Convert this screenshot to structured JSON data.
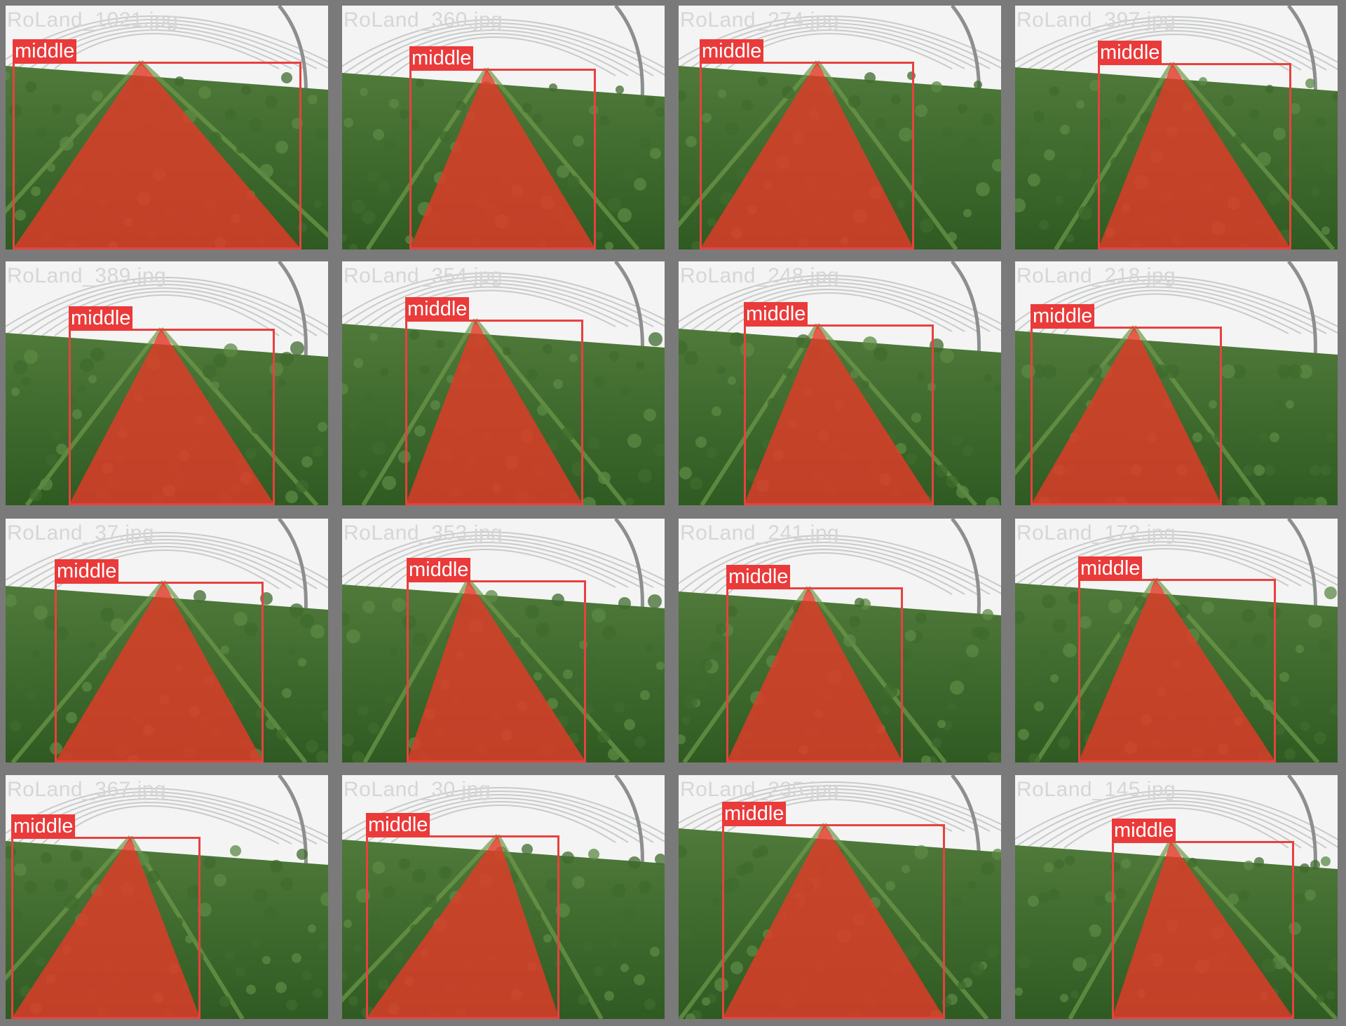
{
  "theme": {
    "mask_color": "#e23a28",
    "box_color": "#e8413f",
    "label_bg": "#ea3a3a",
    "label_text": "#ffffff"
  },
  "tiles": [
    {
      "file": "RoLand_1021.jpg",
      "label": "middle"
    },
    {
      "file": "RoLand_360.jpg",
      "label": "middle"
    },
    {
      "file": "RoLand_274.jpg",
      "label": "middle"
    },
    {
      "file": "RoLand_397.jpg",
      "label": "middle"
    },
    {
      "file": "RoLand_389.jpg",
      "label": "middle"
    },
    {
      "file": "RoLand_354.jpg",
      "label": "middle"
    },
    {
      "file": "RoLand_248.jpg",
      "label": "middle"
    },
    {
      "file": "RoLand_218.jpg",
      "label": "middle"
    },
    {
      "file": "RoLand_37.jpg",
      "label": "middle"
    },
    {
      "file": "RoLand_353.jpg",
      "label": "middle"
    },
    {
      "file": "RoLand_241.jpg",
      "label": "middle"
    },
    {
      "file": "RoLand_172.jpg",
      "label": "middle"
    },
    {
      "file": "RoLand_367.jpg",
      "label": "middle"
    },
    {
      "file": "RoLand_30.jpg",
      "label": "middle"
    },
    {
      "file": "RoLand_235.jpg",
      "label": "middle"
    },
    {
      "file": "RoLand_145.jpg",
      "label": "middle"
    }
  ]
}
